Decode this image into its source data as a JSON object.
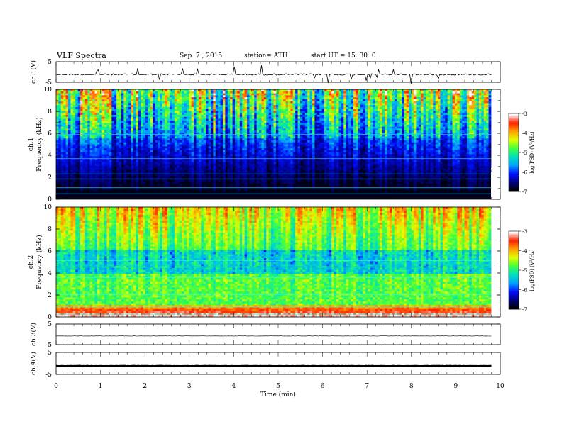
{
  "header": {
    "title": "VLF  Spectra",
    "date": "Sep. 7  , 2015",
    "station": "station= ATH",
    "start": "start  UT  =    15: 30: 0"
  },
  "chart_data": [
    {
      "type": "line",
      "id": "ch1-waveform",
      "ylabel": "ch.1(V)",
      "ylim": [
        -5,
        5
      ],
      "yticks": [
        "5",
        "-5"
      ],
      "x": [
        0,
        9.8
      ],
      "values": [
        -1.2,
        -1.2
      ],
      "note_shape": "noisy trace near -1.2 V with spikes"
    },
    {
      "type": "heatmap",
      "id": "ch1-spectrogram",
      "ylabel": "ch.1\nFrequency  (kHz)",
      "ylim": [
        0,
        10
      ],
      "yticks": [
        "0",
        "2",
        "4",
        "6",
        "8",
        "10"
      ],
      "xlim": [
        0,
        9.8
      ],
      "colorbar": {
        "label": "log(PSD) (V²/Hz)",
        "range": [
          -7,
          -3
        ],
        "ticks": [
          "-3",
          "-4",
          "-5",
          "-6",
          "-7"
        ]
      }
    },
    {
      "type": "heatmap",
      "id": "ch2-spectrogram",
      "ylabel": "ch.2\nFrequency  (kHz)",
      "ylim": [
        0,
        10
      ],
      "yticks": [
        "0",
        "2",
        "4",
        "6",
        "8",
        "10"
      ],
      "xlim": [
        0,
        9.8
      ],
      "colorbar": {
        "label": "log(PSD) (V²/Hz)",
        "range": [
          -7,
          -3
        ],
        "ticks": [
          "-3",
          "-4",
          "-5",
          "-6",
          "-7"
        ]
      }
    },
    {
      "type": "line",
      "id": "ch3-waveform",
      "ylabel": "ch.3(V)",
      "ylim": [
        -5,
        5
      ],
      "yticks": [
        "5",
        "-5"
      ],
      "x": [
        0,
        9.8
      ],
      "values": [
        -0.8,
        -0.8
      ]
    },
    {
      "type": "line",
      "id": "ch4-waveform",
      "ylabel": "ch.4(V)",
      "ylim": [
        -5,
        5
      ],
      "yticks": [
        "5",
        "-5"
      ],
      "x": [
        0,
        9.8
      ],
      "values": [
        -1.0,
        -1.0
      ]
    }
  ],
  "xaxis": {
    "label": "Time  (min)",
    "range": [
      0,
      10
    ],
    "ticks": [
      "0",
      "1",
      "2",
      "3",
      "4",
      "5",
      "6",
      "7",
      "8",
      "9",
      "10"
    ]
  },
  "colormap": [
    "#000000",
    "#00007a",
    "#0010ff",
    "#00a0ff",
    "#00e0c0",
    "#40ff40",
    "#e0ff00",
    "#ffa000",
    "#ff2000",
    "#ffffff"
  ]
}
